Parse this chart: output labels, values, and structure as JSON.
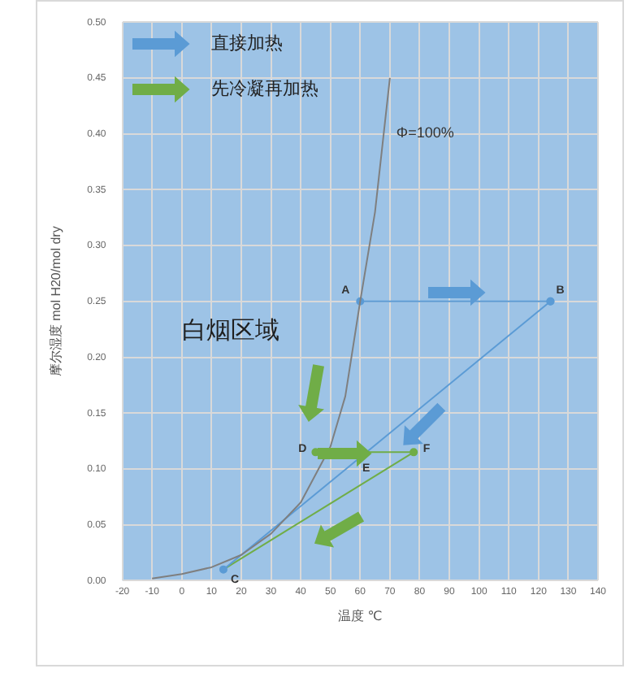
{
  "chart_data": {
    "type": "line",
    "xlabel": "温度 ℃",
    "ylabel": "摩尔湿度 mol H20/mol dry",
    "xlim": [
      -20,
      140
    ],
    "xticks": [
      -20,
      -10,
      0,
      10,
      20,
      30,
      40,
      50,
      60,
      70,
      80,
      90,
      100,
      110,
      120,
      130,
      140
    ],
    "ylim": [
      0,
      0.5
    ],
    "yticks": [
      {
        "value": 0,
        "label": "0.00"
      },
      {
        "value": 0.05,
        "label": "0.05"
      },
      {
        "value": 0.1,
        "label": "0.10"
      },
      {
        "value": 0.15,
        "label": "0.15"
      },
      {
        "value": 0.2,
        "label": "0.20"
      },
      {
        "value": 0.25,
        "label": "0.25"
      },
      {
        "value": 0.3,
        "label": "0.30"
      },
      {
        "value": 0.35,
        "label": "0.35"
      },
      {
        "value": 0.4,
        "label": "0.40"
      },
      {
        "value": 0.45,
        "label": "0.45"
      },
      {
        "value": 0.5,
        "label": "0.50"
      }
    ],
    "grid": true,
    "legend": false,
    "series": [
      {
        "name": "Φ=100%",
        "color": "#7f7f7f",
        "marker": "none",
        "x": [
          -10,
          0,
          10,
          20,
          30,
          40,
          50,
          55,
          60,
          65,
          70
        ],
        "values": [
          0.002,
          0.006,
          0.012,
          0.023,
          0.042,
          0.07,
          0.12,
          0.165,
          0.25,
          0.33,
          0.45
        ]
      },
      {
        "color": "#5b9bd5",
        "marker": "circle",
        "x": [
          60,
          124
        ],
        "values": [
          0.25,
          0.25
        ]
      },
      {
        "color": "#5b9bd5",
        "marker": "circle",
        "x": [
          14,
          124
        ],
        "values": [
          0.01,
          0.25
        ]
      },
      {
        "color": "#70ad47",
        "marker": "circle",
        "x": [
          45,
          78
        ],
        "values": [
          0.115,
          0.115
        ]
      },
      {
        "color": "#70ad47",
        "marker": "none",
        "x": [
          78,
          14
        ],
        "values": [
          0.115,
          0.01
        ]
      }
    ],
    "annotations": [
      "直接加热",
      "先冷凝再加热",
      "白烟区域",
      {
        "text": "A",
        "x": 60,
        "y": 0.25
      },
      {
        "text": "B",
        "x": 124,
        "y": 0.25
      },
      {
        "text": "C",
        "x": 14,
        "y": 0.01
      },
      {
        "text": "D",
        "x": 45,
        "y": 0.115
      },
      {
        "text": "E",
        "x": 62,
        "y": 0.115
      },
      {
        "text": "F",
        "x": 78,
        "y": 0.115
      }
    ]
  }
}
